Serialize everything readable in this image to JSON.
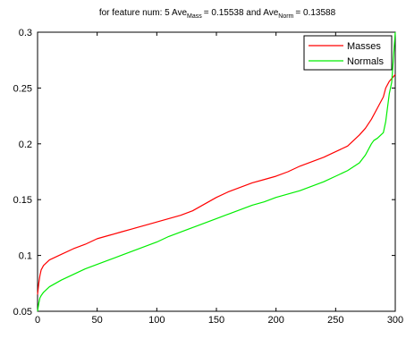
{
  "chart_data": {
    "type": "line",
    "title": {
      "prefix": "for feature num: 5 Ave",
      "sub1": "Mass",
      "mid": "= 0.15538 and Ave",
      "sub2": "Norm",
      "suffix": "= 0.13588"
    },
    "xlabel": "",
    "ylabel": "",
    "xlim": [
      0,
      300
    ],
    "ylim": [
      0.05,
      0.3
    ],
    "xticks": [
      0,
      50,
      100,
      150,
      200,
      250,
      300
    ],
    "yticks": [
      0.05,
      0.1,
      0.15,
      0.2,
      0.25,
      0.3
    ],
    "ytick_labels": [
      "0.05",
      "0.1",
      "0.15",
      "0.2",
      "0.25",
      "0.3"
    ],
    "grid": false,
    "legend_position": "top-right",
    "series": [
      {
        "name": "Masses",
        "color": "#ff0000",
        "x": [
          0,
          1,
          2,
          3,
          5,
          10,
          20,
          30,
          40,
          50,
          60,
          70,
          80,
          90,
          100,
          110,
          120,
          130,
          140,
          150,
          160,
          170,
          180,
          190,
          200,
          210,
          220,
          230,
          240,
          250,
          260,
          270,
          275,
          280,
          285,
          290,
          292,
          295,
          300
        ],
        "y": [
          0.065,
          0.075,
          0.082,
          0.087,
          0.091,
          0.096,
          0.101,
          0.106,
          0.11,
          0.115,
          0.118,
          0.121,
          0.124,
          0.127,
          0.13,
          0.133,
          0.136,
          0.14,
          0.146,
          0.152,
          0.157,
          0.161,
          0.165,
          0.168,
          0.171,
          0.175,
          0.18,
          0.184,
          0.188,
          0.193,
          0.198,
          0.208,
          0.214,
          0.222,
          0.232,
          0.242,
          0.25,
          0.256,
          0.262
        ]
      },
      {
        "name": "Normals",
        "color": "#00ee00",
        "x": [
          0,
          1,
          2,
          3,
          5,
          10,
          20,
          30,
          40,
          50,
          60,
          70,
          80,
          90,
          100,
          110,
          120,
          130,
          140,
          150,
          160,
          170,
          180,
          190,
          200,
          210,
          220,
          230,
          240,
          250,
          260,
          270,
          275,
          280,
          282,
          285,
          290,
          292,
          295,
          297,
          298,
          300
        ],
        "y": [
          0.05,
          0.057,
          0.062,
          0.064,
          0.067,
          0.072,
          0.078,
          0.083,
          0.088,
          0.092,
          0.096,
          0.1,
          0.104,
          0.108,
          0.112,
          0.117,
          0.121,
          0.125,
          0.129,
          0.133,
          0.137,
          0.141,
          0.145,
          0.148,
          0.152,
          0.155,
          0.158,
          0.162,
          0.166,
          0.171,
          0.176,
          0.183,
          0.19,
          0.2,
          0.203,
          0.205,
          0.21,
          0.22,
          0.245,
          0.255,
          0.27,
          0.3
        ]
      }
    ]
  }
}
